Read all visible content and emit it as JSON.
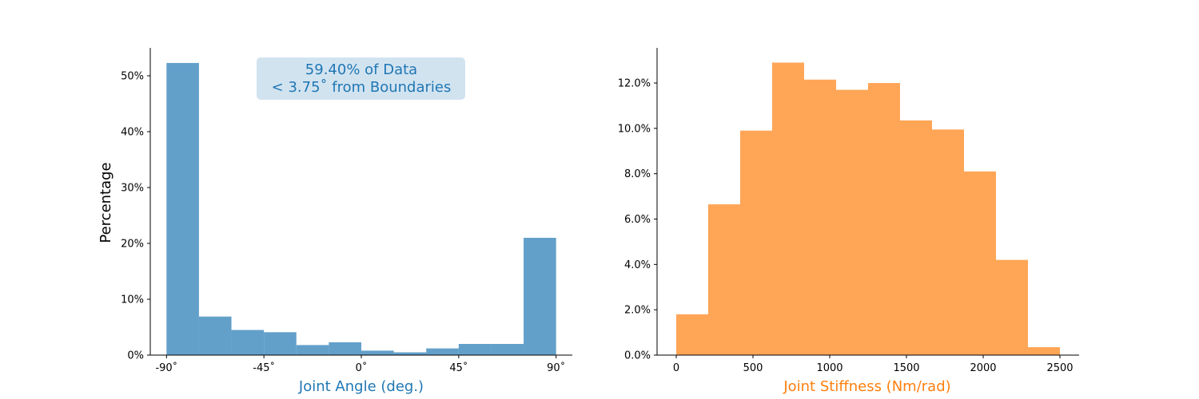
{
  "chart_data": [
    {
      "type": "bar",
      "subtype": "histogram",
      "title": "",
      "xlabel": "Joint Angle (deg.)",
      "ylabel": "Percentage",
      "bin_edges": [
        -90,
        -75,
        -60,
        -45,
        -30,
        -15,
        0,
        15,
        30,
        45,
        60,
        75,
        90
      ],
      "values": [
        52.3,
        6.9,
        4.5,
        4.1,
        1.8,
        2.3,
        0.8,
        0.5,
        1.2,
        2.0,
        2.0,
        21.0
      ],
      "xlim": [
        -97.5,
        97.5
      ],
      "ylim": [
        0,
        55
      ],
      "x_ticks": [
        -90,
        -45,
        0,
        45,
        90
      ],
      "x_tick_labels": [
        "-90˚",
        "-45˚",
        "0˚",
        "45˚",
        "90˚"
      ],
      "y_ticks": [
        0,
        10,
        20,
        30,
        40,
        50
      ],
      "y_tick_labels": [
        "0%",
        "10%",
        "20%",
        "30%",
        "40%",
        "50%"
      ],
      "color": "#1f77b4",
      "bar_alpha": 0.7,
      "grid": false,
      "annotation": {
        "line1": "59.40% of Data",
        "line2": "< 3.75˚  from Boundaries",
        "position": "top-center",
        "text_color": "#1f77b4",
        "box_color": "#d2e3f0"
      }
    },
    {
      "type": "bar",
      "subtype": "histogram",
      "title": "",
      "xlabel": "Joint Stiffness (Nm/rad)",
      "ylabel": "",
      "bin_edges": [
        0,
        208.3,
        416.7,
        625,
        833.3,
        1041.7,
        1250,
        1458.3,
        1666.7,
        1875,
        2083.3,
        2291.7,
        2500
      ],
      "values": [
        1.8,
        6.65,
        9.9,
        12.9,
        12.15,
        11.7,
        12.0,
        10.35,
        9.95,
        8.1,
        4.2,
        0.35
      ],
      "xlim": [
        -125,
        2625
      ],
      "ylim": [
        0,
        13.55
      ],
      "x_ticks": [
        0,
        500,
        1000,
        1500,
        2000,
        2500
      ],
      "x_tick_labels": [
        "0",
        "500",
        "1000",
        "1500",
        "2000",
        "2500"
      ],
      "y_ticks": [
        0,
        2,
        4,
        6,
        8,
        10,
        12
      ],
      "y_tick_labels": [
        "0.0%",
        "2.0%",
        "4.0%",
        "6.0%",
        "8.0%",
        "10.0%",
        "12.0%"
      ],
      "color": "#ff7f0e",
      "bar_alpha": 0.7,
      "grid": false
    }
  ]
}
